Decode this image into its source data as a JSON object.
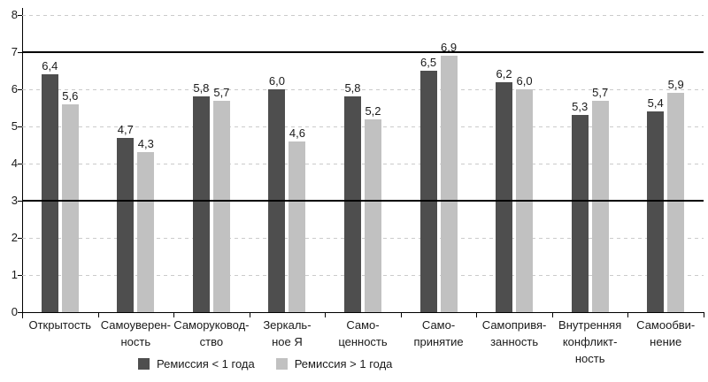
{
  "chart_data": {
    "type": "bar",
    "title": "",
    "xlabel": "",
    "ylabel": "",
    "categories": [
      "Открытость",
      "Самоуверен-\nность",
      "Саморуковод-\nство",
      "Зеркаль-\nное Я",
      "Само-\nценность",
      "Само-\nпринятие",
      "Самопривя-\nзанность",
      "Внутренняя\nконфликт-\nность",
      "Самообви-\nнение"
    ],
    "series": [
      {
        "name": "Ремиссия < 1 года",
        "color": "#4e4e4e",
        "values": [
          6.4,
          4.7,
          5.8,
          6.0,
          5.8,
          6.5,
          6.2,
          5.3,
          5.4
        ],
        "value_labels": [
          "6,4",
          "4,7",
          "5,8",
          "6,0",
          "5,8",
          "6,5",
          "6,2",
          "5,3",
          "5,4"
        ]
      },
      {
        "name": "Ремиссия > 1 года",
        "color": "#c1c1c1",
        "values": [
          5.6,
          4.3,
          5.7,
          4.6,
          5.2,
          6.9,
          6.0,
          5.7,
          5.9
        ],
        "value_labels": [
          "5,6",
          "4,3",
          "5,7",
          "4,6",
          "5,2",
          "6,9",
          "6,0",
          "5,7",
          "5,9"
        ]
      }
    ],
    "ylim": [
      0,
      8
    ],
    "yticks": [
      0,
      1,
      2,
      3,
      4,
      5,
      6,
      7,
      8
    ],
    "reference_lines": [
      3,
      7
    ],
    "grid": "horizontal-dashed",
    "legend_position": "bottom"
  },
  "colors": {
    "dark_series": "#4e4e4e",
    "light_series": "#c1c1c1",
    "gridline": "#cbcbcb",
    "axis": "#000000",
    "reference_line": "#000000",
    "text": "#1a1a1a",
    "background": "#ffffff"
  }
}
